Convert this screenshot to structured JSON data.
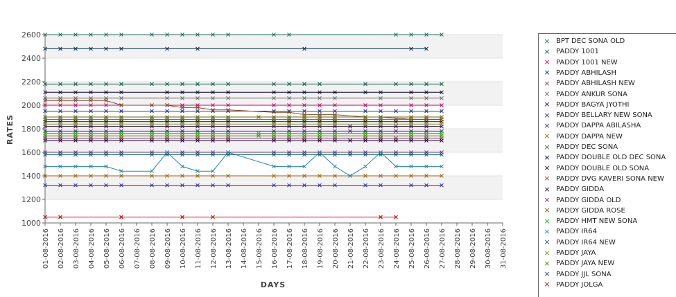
{
  "chart_data": {
    "type": "line",
    "xlabel": "DAYS",
    "ylabel": "RATES",
    "ylim": [
      1000,
      2600
    ],
    "yticks": [
      "1000",
      "1200",
      "1400",
      "1600",
      "1800",
      "2000",
      "2200",
      "2400",
      "2600"
    ],
    "categories": [
      "01-08-2016",
      "02-08-2016",
      "03-08-2016",
      "04-08-2016",
      "05-08-2016",
      "06-08-2016",
      "07-08-2016",
      "08-08-2016",
      "09-08-2016",
      "10-08-2016",
      "11-08-2016",
      "12-08-2016",
      "13-08-2016",
      "14-08-2016",
      "15-08-2016",
      "16-08-2016",
      "17-08-2016",
      "18-08-2016",
      "19-08-2016",
      "20-08-2016",
      "21-08-2016",
      "22-08-2016",
      "23-08-2016",
      "24-08-2016",
      "25-08-2016",
      "26-08-2016",
      "27-08-2016",
      "28-08-2016",
      "29-08-2016",
      "30-08-2016",
      "31-08-2016"
    ],
    "legend_position": "right",
    "series": [
      {
        "name": "BPT DEC SONA OLD",
        "color": "#1f6f5f",
        "values": [
          2600,
          2600,
          2600,
          2600,
          2600,
          2600,
          null,
          2600,
          2600,
          2600,
          2600,
          2600,
          2600,
          null,
          null,
          2600,
          2600,
          null,
          null,
          null,
          null,
          null,
          null,
          2600,
          2600,
          2600,
          2600,
          null,
          null,
          null,
          null
        ]
      },
      {
        "name": "PADDY 1001",
        "color": "#0f5f4a",
        "values": [
          2180,
          2180,
          2180,
          2180,
          2180,
          2180,
          null,
          2180,
          2180,
          2180,
          2180,
          2180,
          2180,
          null,
          null,
          2180,
          2180,
          2180,
          2180,
          null,
          null,
          2180,
          null,
          2180,
          2180,
          2180,
          2180,
          null,
          null,
          null,
          null
        ]
      },
      {
        "name": "PADDY 1001 NEW",
        "color": "#cc0066",
        "values": [
          2000,
          2000,
          2000,
          2000,
          2000,
          2000,
          null,
          2000,
          2000,
          2000,
          2000,
          2000,
          2000,
          null,
          null,
          2000,
          2000,
          2000,
          2000,
          2000,
          null,
          2000,
          2000,
          null,
          2000,
          2000,
          2000,
          null,
          null,
          null,
          null
        ]
      },
      {
        "name": "PADDY ABHILASH",
        "color": "#003366",
        "values": [
          2480,
          2480,
          2480,
          2480,
          2480,
          2480,
          null,
          null,
          2480,
          null,
          2480,
          null,
          null,
          null,
          null,
          null,
          null,
          2480,
          null,
          null,
          null,
          null,
          null,
          null,
          2480,
          2480,
          null,
          null,
          null,
          null,
          null
        ]
      },
      {
        "name": "PADDY ABHILASH NEW",
        "color": "#993366",
        "values": [
          1720,
          1720,
          1720,
          1720,
          1720,
          1720,
          null,
          1720,
          1720,
          1720,
          1720,
          1720,
          1720,
          null,
          null,
          1720,
          1720,
          1720,
          1720,
          1720,
          null,
          1720,
          1720,
          1720,
          1720,
          1720,
          1720,
          null,
          null,
          null,
          null
        ]
      },
      {
        "name": "PADDY ANKUR SONA",
        "color": "#666666",
        "values": [
          2060,
          2060,
          2060,
          2060,
          2060,
          2060,
          null,
          null,
          2060,
          2060,
          2060,
          2060,
          2060,
          null,
          null,
          2060,
          2060,
          2060,
          2060,
          2060,
          null,
          null,
          2060,
          null,
          2060,
          2060,
          2060,
          null,
          null,
          null,
          null
        ]
      },
      {
        "name": "PADDY BAGYA JYOTHI",
        "color": "#330066",
        "values": [
          1820,
          1820,
          1820,
          1820,
          1820,
          1820,
          null,
          1820,
          1820,
          1820,
          1820,
          1820,
          1820,
          null,
          null,
          1820,
          1820,
          1820,
          1820,
          1820,
          1820,
          1820,
          1820,
          1820,
          1820,
          1820,
          1820,
          null,
          null,
          null,
          null
        ]
      },
      {
        "name": "PADDY BELLARY NEW SONA",
        "color": "#1a3399",
        "values": [
          1950,
          1950,
          1950,
          1950,
          1950,
          1950,
          null,
          1950,
          1950,
          1950,
          1950,
          1950,
          1950,
          null,
          null,
          1950,
          1950,
          1950,
          1950,
          1950,
          null,
          1950,
          1950,
          1950,
          1950,
          1950,
          1950,
          null,
          null,
          null,
          null
        ]
      },
      {
        "name": "PADDY DAPPA ABILASHA",
        "color": "#552277",
        "values": [
          1780,
          1780,
          1780,
          1780,
          1780,
          1780,
          null,
          1780,
          1780,
          1780,
          1780,
          1780,
          1780,
          null,
          null,
          1780,
          1780,
          1780,
          1780,
          1780,
          1780,
          1780,
          1780,
          1780,
          1780,
          1780,
          1780,
          null,
          null,
          null,
          null
        ]
      },
      {
        "name": "PADDY DAPPA NEW",
        "color": "#996600",
        "values": [
          1400,
          1400,
          1400,
          1400,
          1400,
          1400,
          null,
          1400,
          1400,
          1400,
          1400,
          1400,
          1400,
          null,
          null,
          1400,
          1400,
          1400,
          1400,
          1400,
          1400,
          1400,
          1400,
          1400,
          1400,
          1400,
          1400,
          null,
          null,
          null,
          null
        ]
      },
      {
        "name": "PADDY DEC SONA",
        "color": "#446644",
        "values": [
          1880,
          1880,
          1880,
          1880,
          1880,
          1880,
          null,
          1880,
          1880,
          1880,
          1880,
          1880,
          1880,
          null,
          null,
          1880,
          1880,
          1880,
          1880,
          1880,
          null,
          1880,
          1880,
          1880,
          1880,
          1880,
          1880,
          null,
          null,
          null,
          null
        ]
      },
      {
        "name": "PADDY DOUBLE OLD DEC SONA",
        "color": "#000033",
        "values": [
          2110,
          2110,
          2110,
          2110,
          2110,
          2110,
          null,
          null,
          2110,
          2110,
          2110,
          2110,
          2110,
          null,
          null,
          2110,
          2110,
          2110,
          2110,
          2110,
          null,
          2110,
          2110,
          null,
          2110,
          2110,
          2110,
          null,
          null,
          null,
          null
        ]
      },
      {
        "name": "PADDY DOUBLE OLD SONA",
        "color": "#330000",
        "values": [
          1860,
          1860,
          1860,
          1860,
          1860,
          1860,
          null,
          1860,
          1860,
          1860,
          1860,
          1860,
          1860,
          null,
          null,
          1860,
          1860,
          1860,
          1860,
          1860,
          null,
          1860,
          1860,
          1860,
          1860,
          1860,
          1860,
          null,
          null,
          null,
          null
        ]
      },
      {
        "name": "PADDY DVG KAVERI SONA NEW",
        "color": "#884422",
        "values": [
          2040,
          2040,
          2040,
          2040,
          2040,
          2000,
          null,
          2000,
          2000,
          1980,
          1980,
          1960,
          1960,
          null,
          null,
          1940,
          1940,
          1920,
          1920,
          1920,
          null,
          1900,
          1900,
          null,
          1880,
          1880,
          1880,
          null,
          null,
          null,
          null
        ]
      },
      {
        "name": "PADDY GIDDA",
        "color": "#220044",
        "values": [
          1700,
          1700,
          1700,
          1700,
          1700,
          1700,
          null,
          1700,
          1700,
          1700,
          1700,
          1700,
          1700,
          null,
          null,
          1700,
          1700,
          1700,
          1700,
          1700,
          1700,
          1700,
          1700,
          1700,
          1700,
          1700,
          1700,
          null,
          null,
          null,
          null
        ]
      },
      {
        "name": "PADDY GIDDA OLD",
        "color": "#663399",
        "values": [
          1600,
          1600,
          1600,
          1600,
          1600,
          1600,
          null,
          1600,
          1600,
          1600,
          1600,
          1600,
          1600,
          null,
          null,
          1600,
          1600,
          1600,
          1600,
          1600,
          1600,
          1600,
          1600,
          1600,
          1600,
          1600,
          1600,
          null,
          null,
          null,
          null
        ]
      },
      {
        "name": "PADDY GIDDA ROSE",
        "color": "#666600",
        "values": [
          1900,
          1900,
          1900,
          1900,
          1900,
          1900,
          null,
          1900,
          1900,
          1900,
          1900,
          1900,
          1900,
          null,
          1900,
          1900,
          1900,
          1900,
          1900,
          1900,
          null,
          1900,
          1900,
          null,
          1900,
          1900,
          1900,
          null,
          null,
          null,
          null
        ]
      },
      {
        "name": "PADDY HMT NEW SONA",
        "color": "#00bb00",
        "values": [
          1760,
          1760,
          1760,
          1760,
          1760,
          1760,
          null,
          1760,
          1760,
          1760,
          1760,
          1760,
          1760,
          null,
          1760,
          1760,
          1760,
          1760,
          1760,
          1760,
          null,
          1760,
          1760,
          null,
          1760,
          1760,
          1760,
          null,
          null,
          null,
          null
        ]
      },
      {
        "name": "PADDY IR64",
        "color": "#2288aa",
        "values": [
          1480,
          1480,
          1480,
          1480,
          1480,
          1440,
          null,
          1440,
          1600,
          1480,
          1440,
          1440,
          1600,
          null,
          null,
          1480,
          1480,
          1480,
          1600,
          1480,
          1400,
          1480,
          1600,
          1480,
          1480,
          1480,
          1480,
          null,
          null,
          null,
          null
        ]
      },
      {
        "name": "PADDY IR64 NEW",
        "color": "#006666",
        "values": [
          1580,
          1580,
          1580,
          1580,
          1580,
          1580,
          null,
          1580,
          1580,
          1580,
          1580,
          1580,
          1580,
          null,
          null,
          1580,
          1580,
          1580,
          1580,
          1580,
          1580,
          1580,
          1580,
          1580,
          1580,
          1580,
          1580,
          null,
          null,
          null,
          null
        ]
      },
      {
        "name": "PADDY JAYA",
        "color": "#669900",
        "values": [
          1840,
          1840,
          1840,
          1840,
          1840,
          1840,
          null,
          1840,
          1840,
          1840,
          1840,
          1840,
          1840,
          null,
          null,
          1840,
          1840,
          1840,
          1840,
          1840,
          null,
          1840,
          1840,
          null,
          1840,
          1840,
          1840,
          null,
          null,
          null,
          null
        ]
      },
      {
        "name": "PADDY JAYA NEW",
        "color": "#448800",
        "values": [
          1740,
          1740,
          1740,
          1740,
          1740,
          1740,
          null,
          1740,
          1740,
          1740,
          1740,
          1740,
          1740,
          null,
          1740,
          1740,
          1740,
          1740,
          1740,
          1740,
          null,
          1740,
          1740,
          null,
          1740,
          1740,
          1740,
          null,
          null,
          null,
          null
        ]
      },
      {
        "name": "PADDY JJL SONA",
        "color": "#333399",
        "values": [
          1320,
          1320,
          1320,
          1320,
          1320,
          1320,
          null,
          1320,
          1320,
          1320,
          1320,
          1320,
          1320,
          null,
          null,
          1320,
          1320,
          1320,
          1320,
          1320,
          null,
          1320,
          1320,
          null,
          1320,
          1320,
          1320,
          null,
          null,
          null,
          null
        ]
      },
      {
        "name": "PADDY JOLGA",
        "color": "#cc0000",
        "values": [
          1050,
          1050,
          null,
          null,
          null,
          1050,
          null,
          null,
          null,
          1050,
          null,
          1050,
          null,
          null,
          null,
          null,
          null,
          null,
          null,
          null,
          null,
          null,
          1050,
          1050,
          null,
          null,
          null,
          null,
          null,
          null,
          null
        ]
      }
    ]
  }
}
